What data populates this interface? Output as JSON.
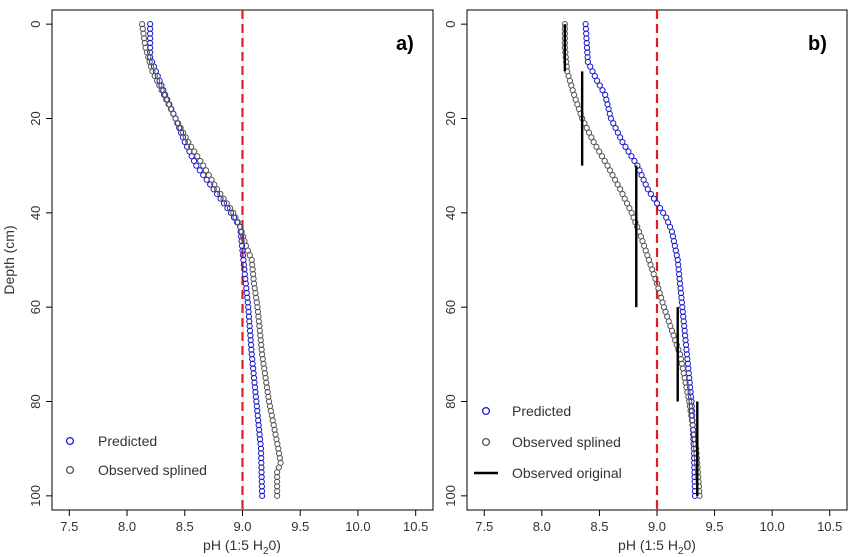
{
  "chart_data": [
    {
      "type": "scatter",
      "panel_label": "a)",
      "xlabel": "pH (1:5 H",
      "xlabel_sub": "2",
      "xlabel_end": "0)",
      "ylabel": "Depth (cm)",
      "xlim": [
        7.35,
        10.65
      ],
      "ylim": [
        -3,
        103
      ],
      "x_ticks": [
        7.5,
        8.0,
        8.5,
        9.0,
        9.5,
        10.0,
        10.5
      ],
      "x_tick_labels": [
        "7.5",
        "8.0",
        "8.5",
        "9.0",
        "9.5",
        "10.0",
        "10.5"
      ],
      "y_ticks": [
        0,
        20,
        40,
        60,
        80,
        100
      ],
      "y_tick_labels": [
        "0",
        "20",
        "40",
        "60",
        "80",
        "100"
      ],
      "y_inverted": true,
      "reference_line": {
        "x": 9.0,
        "color": "#e02020",
        "style": "dashed"
      },
      "legend": {
        "position": "bottom-left",
        "entries": [
          {
            "label": "Predicted",
            "marker": "circle",
            "color": "#1a1acc"
          },
          {
            "label": "Observed splined",
            "marker": "circle",
            "color": "#555555"
          }
        ]
      },
      "series": [
        {
          "name": "Predicted",
          "marker": "circle",
          "color": "#1a1acc",
          "depth_step": 1,
          "profile": [
            [
              0,
              8.2
            ],
            [
              7,
              8.2
            ],
            [
              10,
              8.25
            ],
            [
              15,
              8.33
            ],
            [
              20,
              8.42
            ],
            [
              25,
              8.5
            ],
            [
              30,
              8.6
            ],
            [
              35,
              8.75
            ],
            [
              40,
              8.9
            ],
            [
              43,
              8.98
            ],
            [
              48,
              9.0
            ],
            [
              53,
              9.02
            ],
            [
              60,
              9.05
            ],
            [
              70,
              9.08
            ],
            [
              80,
              9.12
            ],
            [
              90,
              9.16
            ],
            [
              100,
              9.17
            ]
          ]
        },
        {
          "name": "Observed splined",
          "marker": "circle",
          "color": "#555555",
          "depth_step": 1,
          "profile": [
            [
              0,
              8.13
            ],
            [
              5,
              8.16
            ],
            [
              10,
              8.22
            ],
            [
              15,
              8.32
            ],
            [
              20,
              8.42
            ],
            [
              25,
              8.53
            ],
            [
              30,
              8.66
            ],
            [
              35,
              8.78
            ],
            [
              40,
              8.92
            ],
            [
              43,
              8.98
            ],
            [
              47,
              9.03
            ],
            [
              50,
              9.08
            ],
            [
              55,
              9.1
            ],
            [
              60,
              9.13
            ],
            [
              70,
              9.17
            ],
            [
              80,
              9.23
            ],
            [
              90,
              9.31
            ],
            [
              93,
              9.33
            ],
            [
              95,
              9.3
            ],
            [
              100,
              9.3
            ]
          ]
        }
      ]
    },
    {
      "type": "scatter",
      "panel_label": "b)",
      "xlabel": "pH (1:5 H",
      "xlabel_sub": "2",
      "xlabel_end": "0)",
      "ylabel": "",
      "xlim": [
        7.35,
        10.65
      ],
      "ylim": [
        -3,
        103
      ],
      "x_ticks": [
        7.5,
        8.0,
        8.5,
        9.0,
        9.5,
        10.0,
        10.5
      ],
      "x_tick_labels": [
        "7.5",
        "8.0",
        "8.5",
        "9.0",
        "9.5",
        "10.0",
        "10.5"
      ],
      "y_ticks": [
        0,
        20,
        40,
        60,
        80,
        100
      ],
      "y_tick_labels": [
        "0",
        "20",
        "40",
        "60",
        "80",
        "100"
      ],
      "y_inverted": true,
      "reference_line": {
        "x": 9.0,
        "color": "#e02020",
        "style": "dashed"
      },
      "legend": {
        "position": "bottom-left",
        "entries": [
          {
            "label": "Predicted",
            "marker": "circle",
            "color": "#1a1acc"
          },
          {
            "label": "Observed splined",
            "marker": "circle",
            "color": "#555555"
          },
          {
            "label": "Observed original",
            "marker": "line",
            "color": "#000000"
          }
        ]
      },
      "series": [
        {
          "name": "Predicted",
          "marker": "circle",
          "color": "#1a1acc",
          "depth_step": 1,
          "profile": [
            [
              0,
              8.38
            ],
            [
              8,
              8.4
            ],
            [
              12,
              8.48
            ],
            [
              15,
              8.55
            ],
            [
              20,
              8.6
            ],
            [
              25,
              8.7
            ],
            [
              30,
              8.83
            ],
            [
              35,
              8.92
            ],
            [
              38,
              9.0
            ],
            [
              41,
              9.08
            ],
            [
              44,
              9.13
            ],
            [
              50,
              9.18
            ],
            [
              60,
              9.22
            ],
            [
              70,
              9.26
            ],
            [
              80,
              9.3
            ],
            [
              90,
              9.32
            ],
            [
              100,
              9.33
            ]
          ]
        },
        {
          "name": "Observed splined",
          "marker": "circle",
          "color": "#555555",
          "depth_step": 1,
          "profile": [
            [
              0,
              8.2
            ],
            [
              5,
              8.2
            ],
            [
              10,
              8.22
            ],
            [
              15,
              8.28
            ],
            [
              20,
              8.35
            ],
            [
              25,
              8.45
            ],
            [
              30,
              8.57
            ],
            [
              35,
              8.68
            ],
            [
              40,
              8.78
            ],
            [
              45,
              8.86
            ],
            [
              50,
              8.93
            ],
            [
              55,
              9.0
            ],
            [
              60,
              9.06
            ],
            [
              65,
              9.13
            ],
            [
              70,
              9.2
            ],
            [
              80,
              9.28
            ],
            [
              90,
              9.34
            ],
            [
              100,
              9.37
            ]
          ]
        },
        {
          "name": "Observed original",
          "marker": "line",
          "color": "#000000",
          "segments": [
            {
              "x": 8.2,
              "depth_top": 0,
              "depth_bottom": 10
            },
            {
              "x": 8.35,
              "depth_top": 10,
              "depth_bottom": 30
            },
            {
              "x": 8.82,
              "depth_top": 30,
              "depth_bottom": 60
            },
            {
              "x": 9.18,
              "depth_top": 60,
              "depth_bottom": 80
            },
            {
              "x": 9.35,
              "depth_top": 80,
              "depth_bottom": 100
            }
          ]
        }
      ]
    }
  ]
}
